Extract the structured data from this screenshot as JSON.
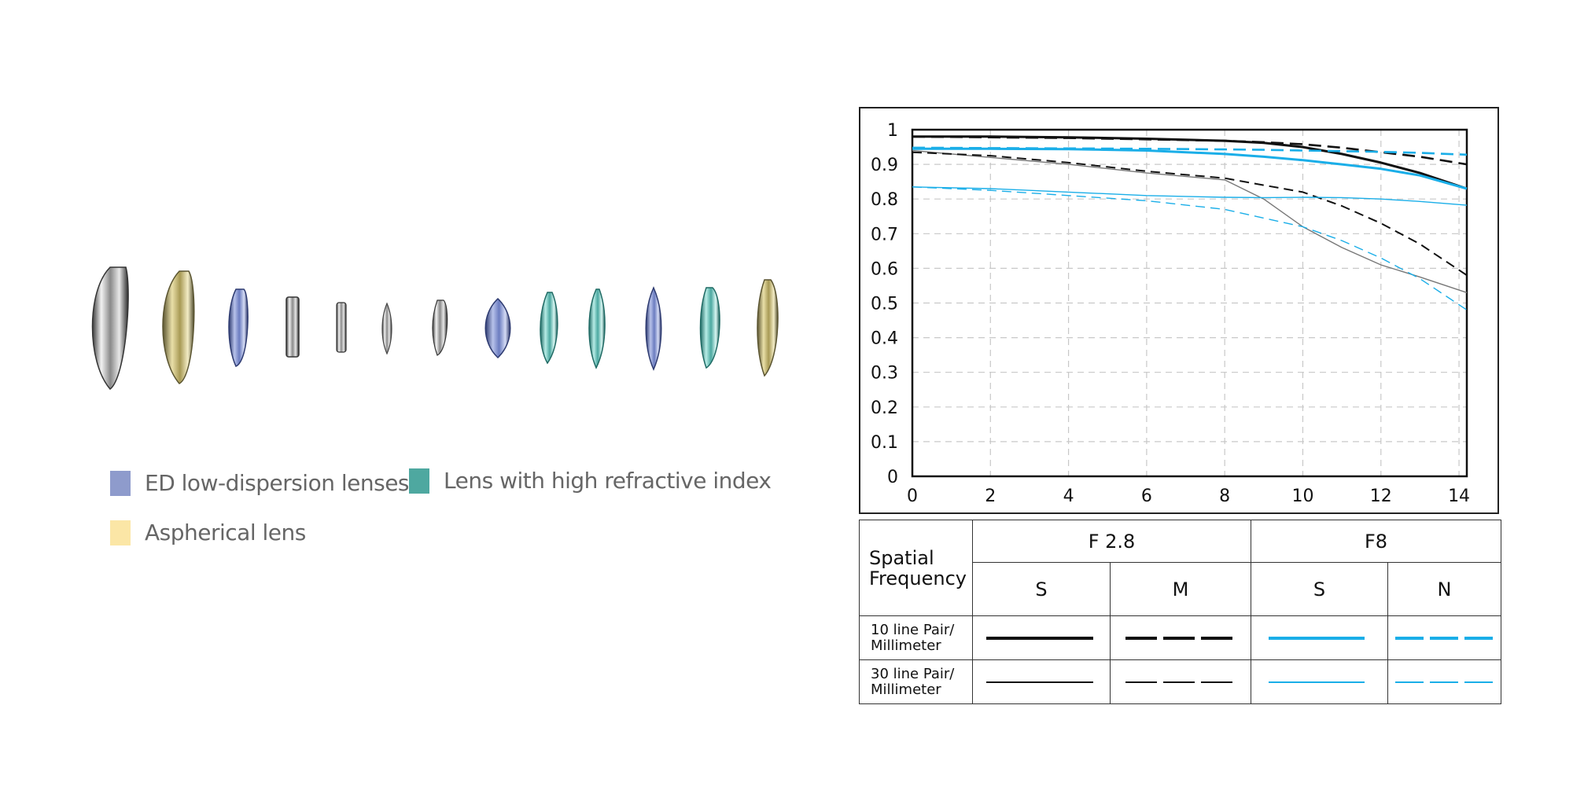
{
  "legend": {
    "items": [
      {
        "label": "ED low-dispersion lenses",
        "color": "#8e9bcc"
      },
      {
        "label": "Lens with high refractive index",
        "color": "#4ea8a0"
      },
      {
        "label": "Aspherical lens",
        "color": "#fbe6a6"
      }
    ]
  },
  "lens_elements": [
    {
      "kind": "clear"
    },
    {
      "kind": "aspherical"
    },
    {
      "kind": "ed"
    },
    {
      "kind": "clear"
    },
    {
      "kind": "clear"
    },
    {
      "kind": "clear"
    },
    {
      "kind": "clear"
    },
    {
      "kind": "ed"
    },
    {
      "kind": "high-index"
    },
    {
      "kind": "high-index"
    },
    {
      "kind": "ed"
    },
    {
      "kind": "high-index"
    },
    {
      "kind": "aspherical"
    }
  ],
  "chart_data": {
    "type": "line",
    "title": "",
    "xlabel": "",
    "ylabel": "",
    "xlim": [
      0,
      14.2
    ],
    "ylim": [
      0,
      1
    ],
    "xticks": [
      "0",
      "2",
      "4",
      "6",
      "8",
      "10",
      "12",
      "14"
    ],
    "yticks": [
      "0",
      "0.1",
      "0.2",
      "0.3",
      "0.4",
      "0.5",
      "0.6",
      "0.7",
      "0.8",
      "0.9",
      "1"
    ],
    "grid": true,
    "colors": {
      "f28": "#111111",
      "f8": "#1aaee8"
    },
    "series": [
      {
        "aperture": "F 2.8",
        "orientation": "S",
        "frequency": "10",
        "color": "#111111",
        "dash": "solid",
        "width": 3,
        "x": [
          0,
          2,
          4,
          6,
          8,
          9,
          10,
          11,
          12,
          13,
          14.2
        ],
        "y": [
          0.98,
          0.98,
          0.978,
          0.974,
          0.968,
          0.962,
          0.95,
          0.93,
          0.905,
          0.875,
          0.83
        ]
      },
      {
        "aperture": "F 2.8",
        "orientation": "M",
        "frequency": "10",
        "color": "#111111",
        "dash": "dashed",
        "width": 2.6,
        "x": [
          0,
          2,
          4,
          6,
          8,
          9,
          10,
          11,
          12,
          13,
          14.2
        ],
        "y": [
          0.98,
          0.978,
          0.976,
          0.972,
          0.968,
          0.964,
          0.958,
          0.948,
          0.935,
          0.922,
          0.9
        ]
      },
      {
        "aperture": "F 2.8",
        "orientation": "S",
        "frequency": "30",
        "color": "#777777",
        "dash": "solid",
        "width": 1.4,
        "x": [
          0,
          2,
          4,
          6,
          8,
          9,
          10,
          11,
          12,
          13,
          14.2
        ],
        "y": [
          0.94,
          0.92,
          0.9,
          0.875,
          0.855,
          0.8,
          0.72,
          0.66,
          0.61,
          0.575,
          0.53
        ]
      },
      {
        "aperture": "F 2.8",
        "orientation": "M",
        "frequency": "30",
        "color": "#111111",
        "dash": "dashed",
        "width": 2,
        "x": [
          0,
          2,
          4,
          6,
          8,
          9,
          10,
          11,
          12,
          13,
          14.2
        ],
        "y": [
          0.935,
          0.925,
          0.905,
          0.88,
          0.86,
          0.84,
          0.82,
          0.78,
          0.73,
          0.67,
          0.58
        ]
      },
      {
        "aperture": "F8",
        "orientation": "S",
        "frequency": "10",
        "color": "#1aaee8",
        "dash": "solid",
        "width": 3,
        "x": [
          0,
          2,
          4,
          6,
          8,
          9,
          10,
          11,
          12,
          13,
          14.2
        ],
        "y": [
          0.945,
          0.945,
          0.944,
          0.94,
          0.93,
          0.922,
          0.912,
          0.9,
          0.887,
          0.868,
          0.83
        ]
      },
      {
        "aperture": "F8",
        "orientation": "N",
        "frequency": "10",
        "color": "#1aaee8",
        "dash": "dashed",
        "width": 2.6,
        "x": [
          0,
          2,
          4,
          6,
          8,
          9,
          10,
          11,
          12,
          13,
          14.2
        ],
        "y": [
          0.948,
          0.947,
          0.946,
          0.945,
          0.943,
          0.942,
          0.94,
          0.938,
          0.936,
          0.933,
          0.928
        ]
      },
      {
        "aperture": "F8",
        "orientation": "S",
        "frequency": "30",
        "color": "#1aaee8",
        "dash": "solid",
        "width": 1.4,
        "x": [
          0,
          2,
          4,
          6,
          8,
          9,
          10,
          11,
          12,
          13,
          14.2
        ],
        "y": [
          0.835,
          0.83,
          0.82,
          0.81,
          0.805,
          0.804,
          0.805,
          0.804,
          0.8,
          0.793,
          0.782
        ]
      },
      {
        "aperture": "F8",
        "orientation": "N",
        "frequency": "30",
        "color": "#1aaee8",
        "dash": "dashed",
        "width": 1.4,
        "x": [
          0,
          2,
          4,
          6,
          8,
          9,
          10,
          11,
          12,
          13,
          14.2
        ],
        "y": [
          0.835,
          0.825,
          0.81,
          0.795,
          0.77,
          0.745,
          0.72,
          0.68,
          0.63,
          0.57,
          0.48
        ]
      }
    ]
  },
  "key_table": {
    "spatial_frequency": "Spatial Frequency",
    "groups": [
      "F 2.8",
      "F8"
    ],
    "columns": [
      "S",
      "M",
      "S",
      "N"
    ],
    "rows": [
      {
        "label": "10 line Pair/ Millimeter",
        "weight": "thick"
      },
      {
        "label": "30 line Pair/ Millimeter",
        "weight": "thin"
      }
    ]
  }
}
